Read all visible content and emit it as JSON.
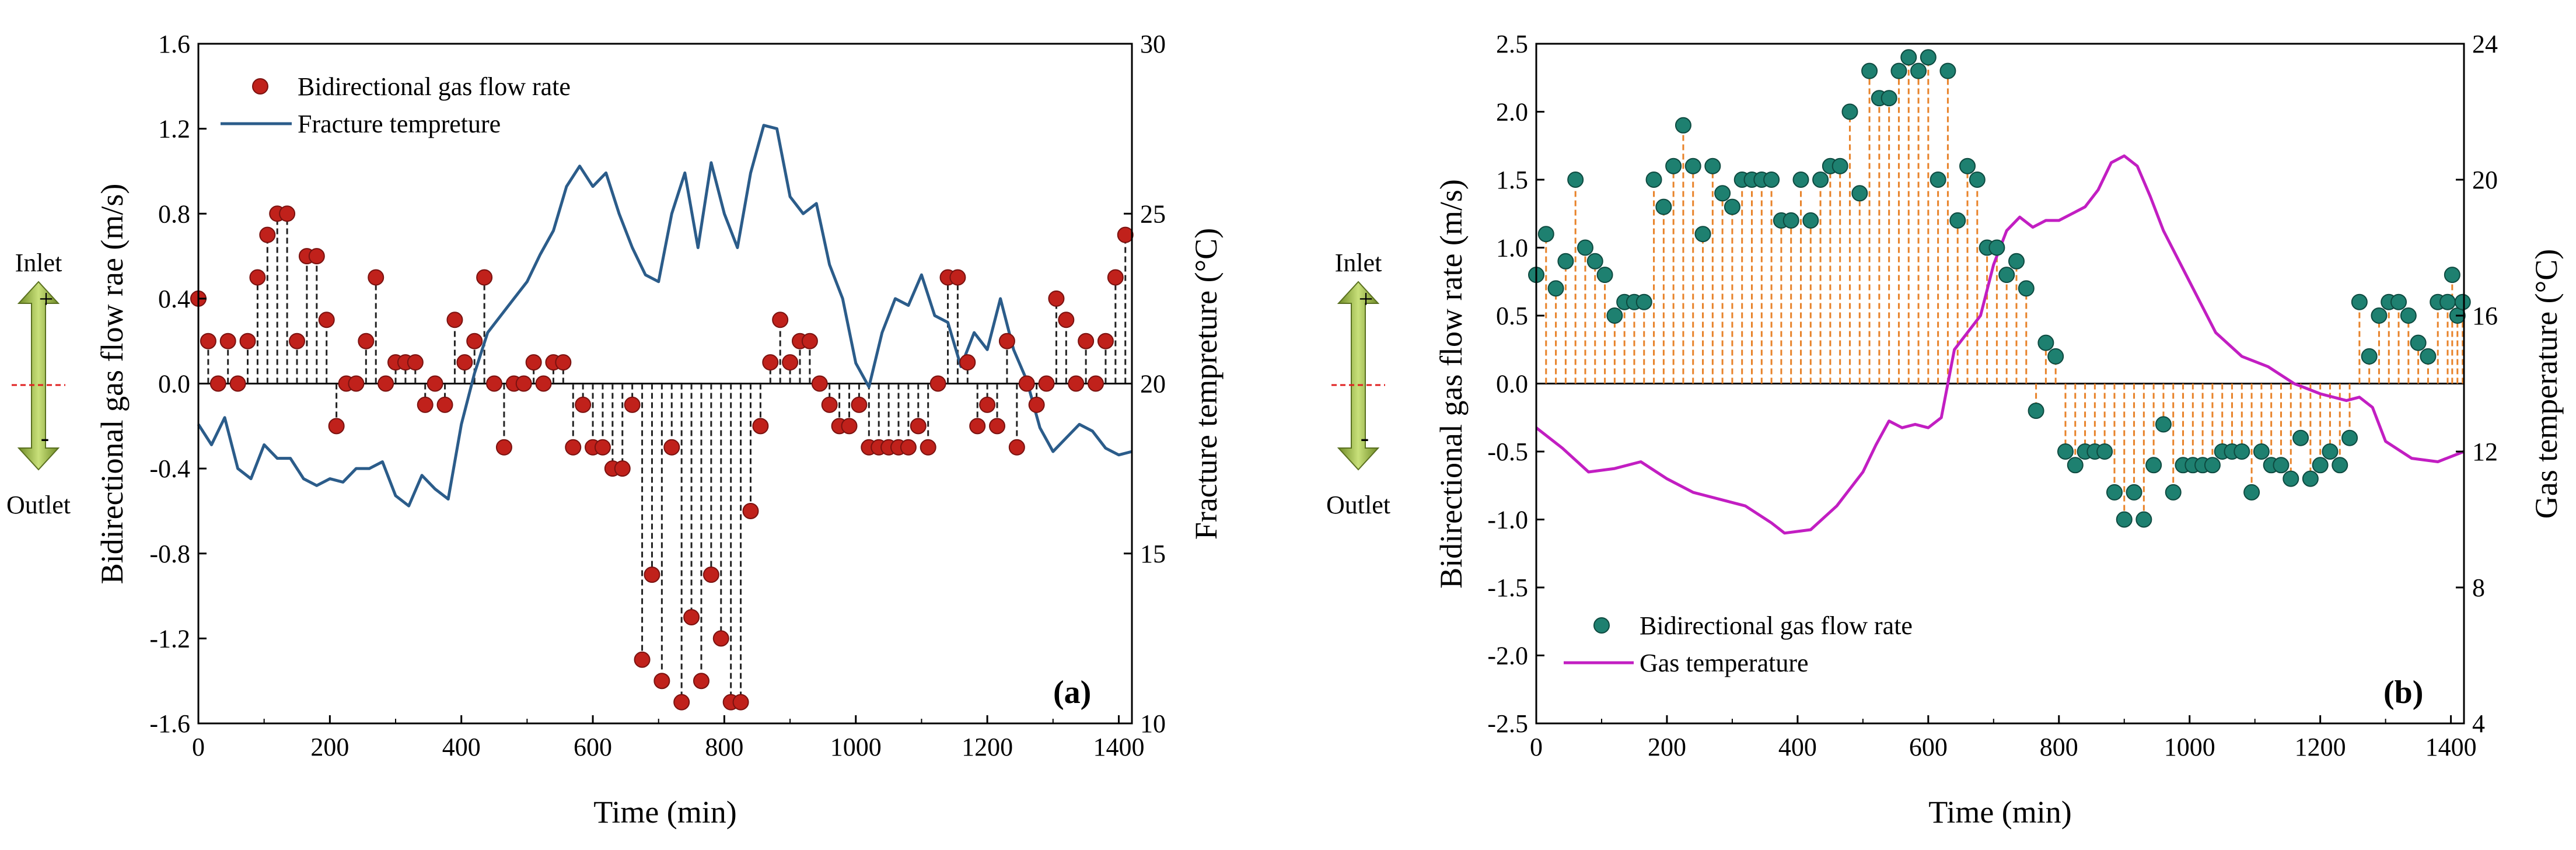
{
  "chart_data": [
    {
      "type": "scatter+line",
      "panel_label": "(a)",
      "xlabel": "Time (min)",
      "ylabel": "Bidirectional gas flow rae (m/s)",
      "y2label": "Fracture tempreture (°C)",
      "xlim": [
        0,
        1420
      ],
      "ylim": [
        -1.6,
        1.6
      ],
      "y2lim": [
        10,
        30
      ],
      "xticks": [
        0,
        200,
        400,
        600,
        800,
        1000,
        1200,
        1400
      ],
      "xtick_labels": [
        "0",
        "200",
        "400",
        "600",
        "800",
        "1000",
        "1200",
        "1400"
      ],
      "yticks": [
        -1.6,
        -1.2,
        -0.8,
        -0.4,
        0.0,
        0.4,
        0.8,
        1.2,
        1.6
      ],
      "ytick_labels": [
        "-1.6",
        "-1.2",
        "-0.8",
        "-0.4",
        "0.0",
        "0.4",
        "0.8",
        "1.2",
        "1.6"
      ],
      "y2ticks": [
        10,
        15,
        20,
        25,
        30
      ],
      "y2tick_labels": [
        "10",
        "15",
        "20",
        "25",
        "30"
      ],
      "legend": [
        "Bidirectional gas flow rate",
        "Fracture tempreture"
      ],
      "colors": {
        "points": "#c0211b",
        "line": "#2b5c8a",
        "stems": "#222222"
      },
      "series": [
        {
          "name": "Bidirectional gas flow rate",
          "kind": "stem",
          "x": [
            0,
            15,
            30,
            45,
            60,
            75,
            90,
            105,
            120,
            135,
            150,
            165,
            180,
            195,
            210,
            225,
            240,
            255,
            270,
            285,
            300,
            315,
            330,
            345,
            360,
            375,
            390,
            405,
            420,
            435,
            450,
            465,
            480,
            495,
            510,
            525,
            540,
            555,
            570,
            585,
            600,
            615,
            630,
            645,
            660,
            675,
            690,
            705,
            720,
            735,
            750,
            765,
            780,
            795,
            810,
            825,
            840,
            855,
            870,
            885,
            900,
            915,
            930,
            945,
            960,
            975,
            990,
            1005,
            1020,
            1035,
            1050,
            1065,
            1080,
            1095,
            1110,
            1125,
            1140,
            1155,
            1170,
            1185,
            1200,
            1215,
            1230,
            1245,
            1260,
            1275,
            1290,
            1305,
            1320,
            1335,
            1350,
            1365,
            1380,
            1395,
            1410
          ],
          "y": [
            0.4,
            0.2,
            0.0,
            0.2,
            0.0,
            0.2,
            0.5,
            0.7,
            0.8,
            0.8,
            0.2,
            0.6,
            0.6,
            0.3,
            -0.2,
            0.0,
            0.0,
            0.2,
            0.5,
            0.0,
            0.1,
            0.1,
            0.1,
            -0.1,
            0.0,
            -0.1,
            0.3,
            0.1,
            0.2,
            0.5,
            0.0,
            -0.3,
            0.0,
            0.0,
            0.1,
            0.0,
            0.1,
            0.1,
            -0.3,
            -0.1,
            -0.3,
            -0.3,
            -0.4,
            -0.4,
            -0.1,
            -1.3,
            -0.9,
            -1.4,
            -0.3,
            -1.5,
            -1.1,
            -1.4,
            -0.9,
            -1.2,
            -1.5,
            -1.5,
            -0.6,
            -0.2,
            0.1,
            0.3,
            0.1,
            0.2,
            0.2,
            0.0,
            -0.1,
            -0.2,
            -0.2,
            -0.1,
            -0.3,
            -0.3,
            -0.3,
            -0.3,
            -0.3,
            -0.2,
            -0.3,
            0.0,
            0.5,
            0.5,
            0.1,
            -0.2,
            -0.1,
            -0.2,
            0.2,
            -0.3,
            0.0,
            -0.1,
            0.0,
            0.4,
            0.3,
            0.0,
            0.2,
            0.0,
            0.2,
            0.5,
            0.7
          ]
        },
        {
          "name": "Fracture tempreture",
          "kind": "line",
          "axis": "right",
          "x": [
            0,
            20,
            40,
            60,
            80,
            100,
            120,
            140,
            160,
            180,
            200,
            220,
            240,
            260,
            280,
            300,
            320,
            340,
            360,
            380,
            400,
            420,
            440,
            460,
            480,
            500,
            520,
            540,
            560,
            580,
            600,
            620,
            640,
            660,
            680,
            700,
            720,
            740,
            760,
            780,
            800,
            820,
            840,
            860,
            880,
            900,
            920,
            940,
            960,
            980,
            1000,
            1020,
            1040,
            1060,
            1080,
            1100,
            1120,
            1140,
            1160,
            1180,
            1200,
            1220,
            1240,
            1260,
            1280,
            1300,
            1320,
            1340,
            1360,
            1380,
            1400,
            1420
          ],
          "y": [
            18.8,
            18.2,
            19.0,
            17.5,
            17.2,
            18.2,
            17.8,
            17.8,
            17.2,
            17.0,
            17.2,
            17.1,
            17.5,
            17.5,
            17.7,
            16.7,
            16.4,
            17.3,
            16.9,
            16.6,
            18.8,
            20.3,
            21.5,
            22.0,
            22.5,
            23.0,
            23.8,
            24.5,
            25.8,
            26.4,
            25.8,
            26.2,
            25.0,
            24.0,
            23.2,
            23.0,
            25.0,
            26.2,
            24.0,
            26.5,
            25.0,
            24.0,
            26.2,
            27.6,
            27.5,
            25.5,
            25.0,
            25.3,
            23.5,
            22.5,
            20.6,
            19.9,
            21.5,
            22.5,
            22.3,
            23.2,
            22.0,
            21.8,
            20.5,
            21.5,
            21.0,
            22.5,
            21.0,
            20.1,
            18.7,
            18.0,
            18.4,
            18.8,
            18.6,
            18.1,
            17.9,
            18.0
          ]
        }
      ]
    },
    {
      "type": "scatter+line",
      "panel_label": "(b)",
      "xlabel": "Time (min)",
      "ylabel": "Bidirectional gas flow rate (m/s)",
      "y2label": "Gas temperature (°C)",
      "xlim": [
        0,
        1420
      ],
      "ylim": [
        -2.5,
        2.5
      ],
      "y2lim": [
        4,
        24
      ],
      "xticks": [
        0,
        200,
        400,
        600,
        800,
        1000,
        1200,
        1400
      ],
      "xtick_labels": [
        "0",
        "200",
        "400",
        "600",
        "800",
        "1000",
        "1200",
        "1400"
      ],
      "yticks": [
        -2.5,
        -2.0,
        -1.5,
        -1.0,
        -0.5,
        0.0,
        0.5,
        1.0,
        1.5,
        2.0,
        2.5
      ],
      "ytick_labels": [
        "-2.5",
        "-2.0",
        "-1.5",
        "-1.0",
        "-0.5",
        "0.0",
        "0.5",
        "1.0",
        "1.5",
        "2.0",
        "2.5"
      ],
      "y2ticks": [
        4,
        8,
        12,
        16,
        20,
        24
      ],
      "y2tick_labels": [
        "4",
        "8",
        "12",
        "16",
        "20",
        "24"
      ],
      "legend": [
        "Bidirectional gas flow rate",
        "Gas temperature"
      ],
      "colors": {
        "points": "#1e8070",
        "line": "#c21ec2",
        "stems": "#e8832a"
      },
      "series": [
        {
          "name": "Bidirectional gas flow rate",
          "kind": "stem",
          "x": [
            0,
            15,
            30,
            45,
            60,
            75,
            90,
            105,
            120,
            135,
            150,
            165,
            180,
            195,
            210,
            225,
            240,
            255,
            270,
            285,
            300,
            315,
            330,
            345,
            360,
            375,
            390,
            405,
            420,
            435,
            450,
            465,
            480,
            495,
            510,
            525,
            540,
            555,
            570,
            585,
            600,
            615,
            630,
            645,
            660,
            675,
            690,
            705,
            720,
            735,
            750,
            765,
            780,
            795,
            810,
            825,
            840,
            855,
            870,
            885,
            900,
            915,
            930,
            945,
            960,
            975,
            990,
            1005,
            1020,
            1035,
            1050,
            1065,
            1080,
            1095,
            1110,
            1125,
            1140,
            1155,
            1170,
            1185,
            1200,
            1215,
            1230,
            1245,
            1260,
            1275,
            1290,
            1305,
            1320,
            1335,
            1350,
            1365,
            1380,
            1395,
            1410
          ],
          "y": [
            0.8,
            1.1,
            0.7,
            0.9,
            1.5,
            1.0,
            0.9,
            0.8,
            0.5,
            0.6,
            0.6,
            0.6,
            1.5,
            1.3,
            1.6,
            1.9,
            1.6,
            1.1,
            1.6,
            1.4,
            1.3,
            1.5,
            1.5,
            1.5,
            1.5,
            1.2,
            1.2,
            1.5,
            1.2,
            1.5,
            1.6,
            1.6,
            2.0,
            1.4,
            2.3,
            2.1,
            2.1,
            2.3,
            2.4,
            2.3,
            2.4,
            1.5,
            2.3,
            1.2,
            1.6,
            1.5,
            1.0,
            1.0,
            0.8,
            0.9,
            0.7,
            -0.2,
            0.3,
            0.2,
            -0.5,
            -0.6,
            -0.5,
            -0.5,
            -0.5,
            -0.8,
            -1.0,
            -0.8,
            -1.0,
            -0.6,
            -0.3,
            -0.8,
            -0.6,
            -0.6,
            -0.6,
            -0.6,
            -0.5,
            -0.5,
            -0.5,
            -0.8,
            -0.5,
            -0.6,
            -0.6,
            -0.7,
            -0.4,
            -0.7,
            -0.6,
            -0.5,
            -0.6,
            -0.4,
            0.6,
            0.2,
            0.5,
            0.6,
            0.6,
            0.5,
            0.3,
            0.2,
            0.6,
            0.6,
            0.5
          ],
          "x_extra": [
            1402,
            1418
          ],
          "y_extra": [
            0.8,
            0.6
          ]
        },
        {
          "name": "Gas temperature",
          "kind": "line",
          "axis": "right",
          "x": [
            0,
            40,
            80,
            120,
            160,
            200,
            240,
            280,
            320,
            360,
            380,
            420,
            460,
            500,
            520,
            540,
            560,
            580,
            600,
            620,
            640,
            660,
            680,
            700,
            720,
            740,
            760,
            780,
            800,
            820,
            840,
            860,
            880,
            900,
            920,
            940,
            960,
            1000,
            1040,
            1080,
            1120,
            1160,
            1200,
            1240,
            1260,
            1280,
            1300,
            1340,
            1380,
            1420
          ],
          "y": [
            12.7,
            12.1,
            11.4,
            11.5,
            11.7,
            11.2,
            10.8,
            10.6,
            10.4,
            9.9,
            9.6,
            9.7,
            10.4,
            11.4,
            12.2,
            12.9,
            12.7,
            12.8,
            12.7,
            13.0,
            15.0,
            15.5,
            16.0,
            17.5,
            18.5,
            18.9,
            18.6,
            18.8,
            18.8,
            19.0,
            19.2,
            19.7,
            20.5,
            20.7,
            20.4,
            19.5,
            18.5,
            17.0,
            15.5,
            14.8,
            14.5,
            14.0,
            13.7,
            13.5,
            13.6,
            13.3,
            12.3,
            11.8,
            11.7,
            12.0
          ]
        }
      ]
    }
  ],
  "arrow_labels": {
    "inlet": "Inlet",
    "outlet": "Outlet",
    "plus": "+",
    "minus": "-"
  }
}
